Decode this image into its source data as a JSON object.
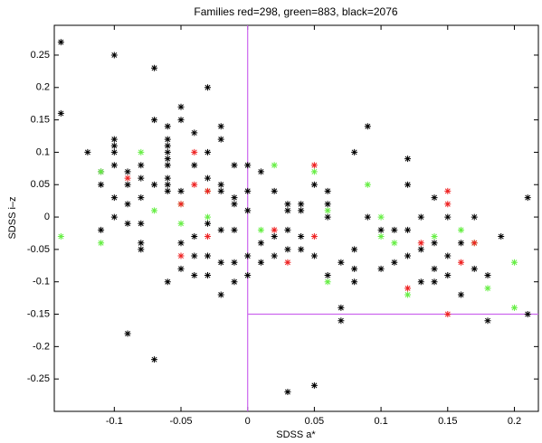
{
  "chart_data": {
    "type": "scatter",
    "title": "Families red=298, green=883, black=2076",
    "xlabel": "SDSS a*",
    "ylabel": "SDSS i–z",
    "xlim": [
      -0.145,
      0.218
    ],
    "ylim": [
      -0.3,
      0.296
    ],
    "xticks": [
      -0.1,
      -0.05,
      0,
      0.05,
      0.1,
      0.15,
      0.2
    ],
    "yticks": [
      -0.25,
      -0.2,
      -0.15,
      -0.1,
      -0.05,
      0,
      0.05,
      0.1,
      0.15,
      0.2,
      0.25
    ],
    "reference_color": "#cc66ee",
    "vlines": [
      0
    ],
    "hlines": [
      {
        "y": -0.15,
        "xmin": 0
      }
    ],
    "series": [
      {
        "color": "#000000",
        "x": [
          -0.14,
          -0.14,
          -0.1,
          -0.07,
          -0.03,
          -0.05,
          -0.12,
          -0.1,
          -0.1,
          -0.1,
          -0.1,
          -0.07,
          -0.06,
          -0.06,
          -0.06,
          -0.04,
          -0.05,
          -0.03,
          -0.02,
          -0.02,
          -0.06,
          -0.06,
          -0.06,
          -0.06,
          -0.06,
          -0.06,
          -0.05,
          -0.04,
          -0.03,
          -0.02,
          -0.02,
          -0.01,
          -0.01,
          0,
          0,
          -0.08,
          -0.08,
          -0.07,
          -0.08,
          -0.09,
          -0.09,
          -0.09,
          -0.09,
          -0.08,
          -0.11,
          -0.11,
          -0.11,
          -0.1,
          -0.1,
          -0.08,
          -0.08,
          -0.09,
          -0.07,
          -0.06,
          -0.05,
          -0.04,
          -0.04,
          -0.03,
          -0.02,
          -0.01,
          0,
          0,
          -0.01,
          -0.02,
          -0.03,
          -0.04,
          -0.05,
          -0.01,
          -0.02,
          -0.03,
          -0.01,
          0,
          0.01,
          0.02,
          0.02,
          0.02,
          0.01,
          0.01,
          0.03,
          0.03,
          0.03,
          0.03,
          0.04,
          0.04,
          0.04,
          0.04,
          0.05,
          0.06,
          0.06,
          0.06,
          0.05,
          0.06,
          0.07,
          0.07,
          0.07,
          0.08,
          0.08,
          0.08,
          0.09,
          0.09,
          0.08,
          0.03,
          0.05,
          0.1,
          0.11,
          0.1,
          0.11,
          0.12,
          0.12,
          0.13,
          0.13,
          0.12,
          0.13,
          0.14,
          0.14,
          0.14,
          0.15,
          0.15,
          0.15,
          0.16,
          0.16,
          0.17,
          0.17,
          0.18,
          0.18,
          0.19,
          0.21,
          0.21,
          0.14,
          0.12
        ],
        "y": [
          0.27,
          0.16,
          0.25,
          0.23,
          0.2,
          0.17,
          0.1,
          0.12,
          0.11,
          0.1,
          0.08,
          0.15,
          0.14,
          0.12,
          0.11,
          0.13,
          0.15,
          0.1,
          0.14,
          0.12,
          0.1,
          0.09,
          0.08,
          0.06,
          0.05,
          0.04,
          0.04,
          0.08,
          0.06,
          0.05,
          0.04,
          0.03,
          0.02,
          0.04,
          0.01,
          0.08,
          0.06,
          0.05,
          0.03,
          0.07,
          0.05,
          0.02,
          -0.01,
          -0.01,
          0.07,
          0.05,
          -0.02,
          0.03,
          0,
          -0.04,
          -0.05,
          -0.18,
          -0.22,
          -0.1,
          -0.04,
          -0.03,
          -0.06,
          -0.06,
          -0.07,
          -0.07,
          -0.06,
          -0.09,
          -0.1,
          -0.12,
          -0.09,
          -0.09,
          -0.08,
          -0.02,
          -0.02,
          -0.01,
          0.08,
          0.08,
          0.07,
          0.04,
          -0.03,
          -0.06,
          -0.04,
          -0.07,
          0.02,
          0.01,
          -0.02,
          -0.05,
          0.02,
          0.01,
          -0.03,
          -0.05,
          0.05,
          0.04,
          0.02,
          0,
          -0.06,
          -0.09,
          -0.14,
          -0.16,
          -0.07,
          -0.08,
          -0.1,
          0.1,
          0.14,
          0,
          -0.05,
          -0.27,
          -0.26,
          -0.02,
          -0.07,
          -0.08,
          -0.02,
          0.09,
          0.05,
          0,
          -0.05,
          -0.06,
          -0.1,
          0.03,
          -0.08,
          -0.1,
          0,
          -0.06,
          -0.09,
          -0.04,
          -0.12,
          0,
          -0.08,
          -0.16,
          -0.09,
          -0.03,
          0.03,
          -0.15,
          -0.04,
          -0.02
        ]
      },
      {
        "color": "#66ee44",
        "x": [
          -0.14,
          -0.11,
          -0.11,
          -0.08,
          -0.07,
          -0.05,
          -0.05,
          -0.03,
          -0.03,
          0.02,
          0.05,
          0.06,
          0.06,
          0.09,
          0.1,
          0.1,
          0.11,
          0.12,
          0.14,
          0.16,
          0.17,
          0.18,
          0.2,
          0.2,
          0.01
        ],
        "y": [
          -0.03,
          0.07,
          -0.04,
          0.1,
          0.01,
          0.02,
          -0.01,
          0.04,
          0,
          0.08,
          0.07,
          0.01,
          -0.1,
          0.05,
          0,
          -0.03,
          -0.04,
          -0.12,
          -0.03,
          -0.02,
          -0.04,
          -0.11,
          -0.07,
          -0.14,
          -0.02
        ]
      },
      {
        "color": "#ee2222",
        "x": [
          -0.09,
          -0.05,
          -0.05,
          -0.04,
          -0.04,
          -0.03,
          -0.03,
          0.02,
          0.03,
          0.05,
          0.05,
          0.12,
          0.13,
          0.15,
          0.15,
          0.15,
          0.16,
          0.17
        ],
        "y": [
          0.06,
          0.02,
          -0.06,
          0.1,
          0.05,
          0.04,
          -0.03,
          -0.02,
          -0.07,
          0.08,
          -0.03,
          -0.11,
          -0.04,
          0.04,
          0.02,
          -0.15,
          -0.07,
          -0.04
        ]
      }
    ]
  }
}
